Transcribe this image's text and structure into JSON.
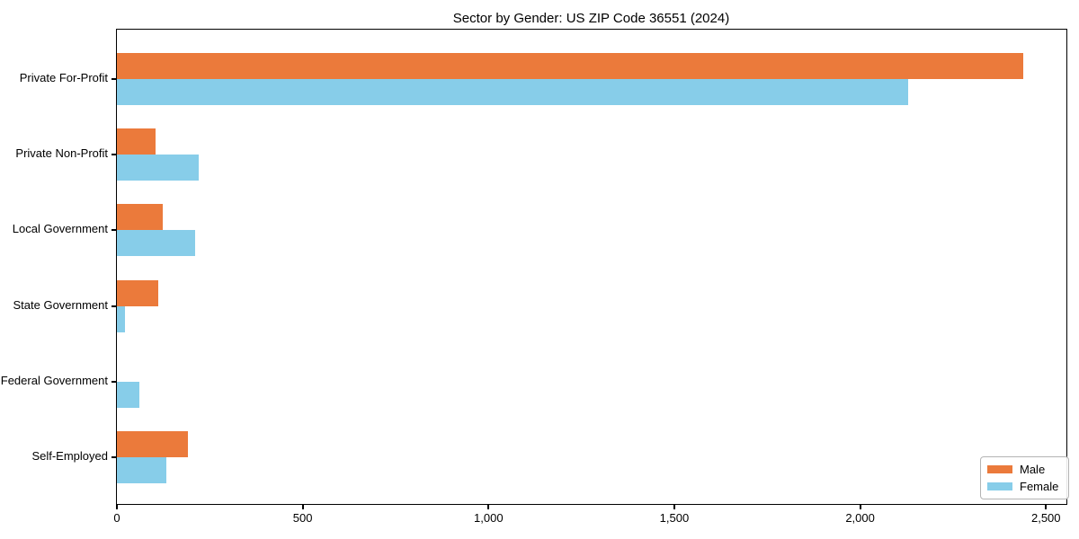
{
  "chart_data": {
    "type": "bar",
    "orientation": "horizontal",
    "title": "Sector by Gender: US ZIP Code 36551 (2024)",
    "categories": [
      "Private For-Profit",
      "Private Non-Profit",
      "Local Government",
      "State Government",
      "Federal Government",
      "Self-Employed"
    ],
    "series": [
      {
        "name": "Male",
        "color": "#EB7A3B",
        "values": [
          2440,
          103,
          124,
          111,
          0,
          192
        ]
      },
      {
        "name": "Female",
        "color": "#87CDE9",
        "values": [
          2130,
          220,
          210,
          22,
          61,
          133
        ]
      }
    ],
    "xlabel": "",
    "ylabel": "",
    "xlim": [
      0,
      2555
    ],
    "xticks": [
      0,
      500,
      1000,
      1500,
      2000,
      2500
    ],
    "xtick_labels": [
      "0",
      "500",
      "1,000",
      "1,500",
      "2,000",
      "2,500"
    ],
    "grid": false,
    "legend_position": "lower right",
    "axis_color": "#000000"
  }
}
